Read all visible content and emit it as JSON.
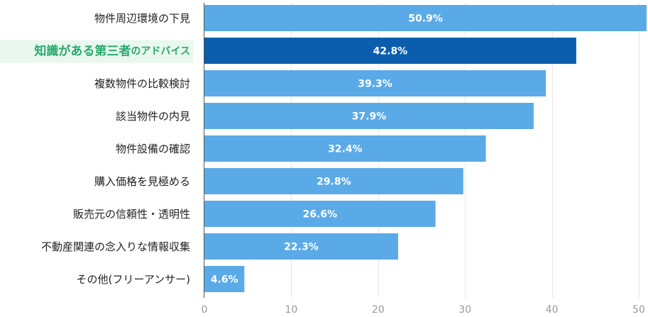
{
  "chart_data": {
    "type": "bar",
    "orientation": "horizontal",
    "categories": [
      "物件周辺環境の下見",
      "知識がある第三者のアドバイス",
      "複数物件の比較検討",
      "該当物件の内見",
      "物件設備の確認",
      "購入価格を見極める",
      "販売元の信頼性・透明性",
      "不動産関連の念入りな情報収集",
      "その他(フリーアンサー)"
    ],
    "values": [
      50.9,
      42.8,
      39.3,
      37.9,
      32.4,
      29.8,
      26.6,
      22.3,
      4.6
    ],
    "value_labels": [
      "50.9%",
      "42.8%",
      "39.3%",
      "37.9%",
      "32.4%",
      "29.8%",
      "26.6%",
      "22.3%",
      "4.6%"
    ],
    "highlight_index": 1,
    "highlight_label_parts": [
      "知識がある第三者",
      "のアドバイス"
    ],
    "xlim": [
      0,
      50
    ],
    "xticks": [
      0,
      10,
      20,
      30,
      40,
      50
    ],
    "grid": true,
    "colors": {
      "bar": "#5aaae7",
      "bar_highlight": "#0b5ead",
      "highlight_text": "#28a96a",
      "highlight_bg": "#e9f7ef"
    }
  }
}
